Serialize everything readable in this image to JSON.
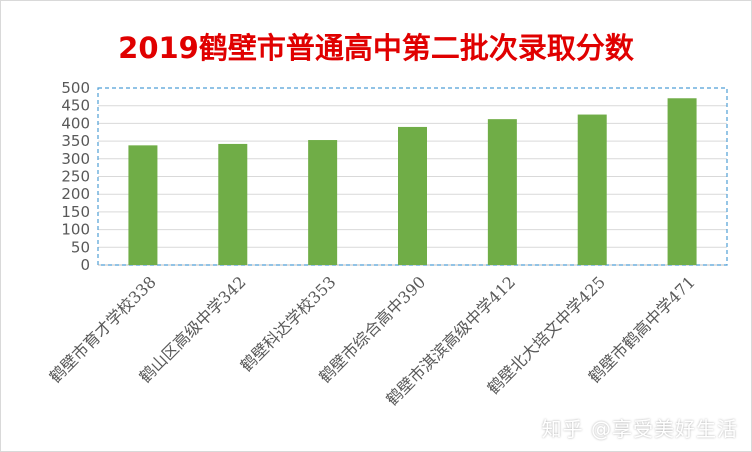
{
  "chart_data": {
    "type": "bar",
    "title": "2019鹤壁市普通高中第二批次录取分数",
    "categories": [
      "鹤壁市育才学校338",
      "鹤山区高级中学342",
      "鹤壁科达学校353",
      "鹤壁市综合高中390",
      "鹤壁市淇滨高级中学412",
      "鹤壁北大培文中学425",
      "鹤壁市鹤高中学471"
    ],
    "values": [
      338,
      342,
      353,
      390,
      412,
      425,
      471
    ],
    "ylim": [
      0,
      500
    ],
    "yticks": [
      0,
      50,
      100,
      150,
      200,
      250,
      300,
      350,
      400,
      450,
      500
    ],
    "grid": true,
    "legend": "none"
  },
  "colors": {
    "bar": "#70ad47",
    "title": "#e00000",
    "grid": "#d9d9d9",
    "plot_border": "#4f9fd6",
    "tick_text": "#595959"
  },
  "watermark": "知乎 @享受美好生活"
}
